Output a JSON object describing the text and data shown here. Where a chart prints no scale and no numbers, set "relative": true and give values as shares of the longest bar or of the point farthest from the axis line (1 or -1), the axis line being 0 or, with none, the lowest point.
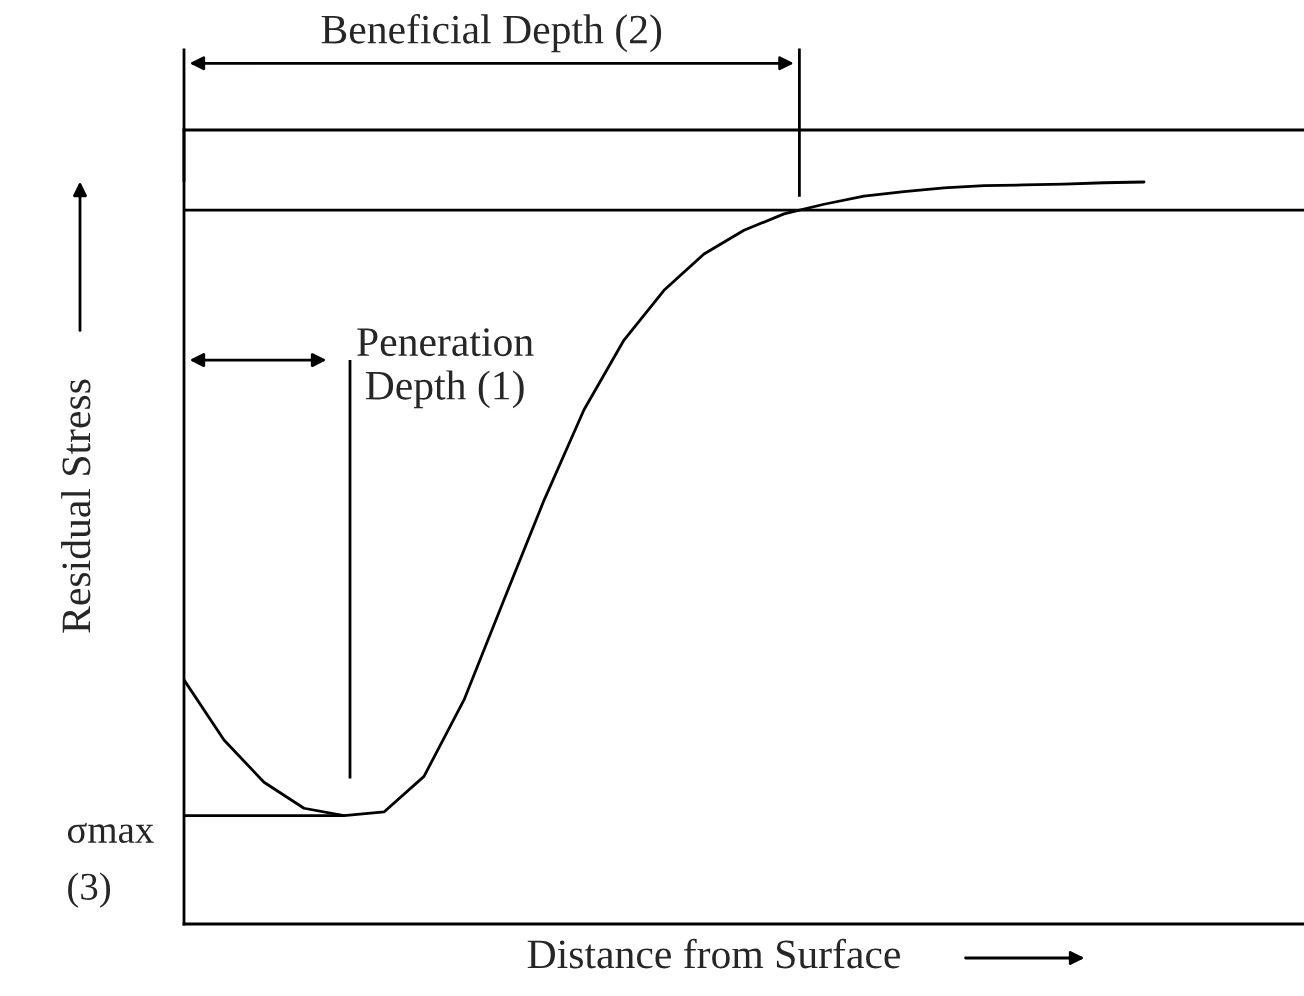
{
  "chart_data": {
    "type": "line",
    "relative": true,
    "xlabel": "Distance from Surface",
    "ylabel": "Residual Stress",
    "categories": [
      null,
      null,
      null,
      null,
      null,
      null,
      null,
      null,
      null,
      null,
      null,
      null,
      null,
      null,
      null,
      null,
      null,
      null,
      null,
      null,
      null,
      null,
      null,
      null,
      null
    ],
    "series": [
      {
        "color": "#000000",
        "values": [
          0.329,
          0.248,
          0.191,
          0.156,
          0.146,
          0.151,
          0.199,
          0.302,
          0.437,
          0.571,
          0.693,
          0.787,
          0.854,
          0.903,
          0.935,
          0.957,
          0.97,
          0.981,
          0.987,
          0.992,
          0.995,
          0.996,
          0.997,
          0.999,
          1.0
        ]
      }
    ],
    "ref_lines": [
      {
        "axis": "y",
        "value": 0.962,
        "color": "#000000"
      },
      {
        "axis": "y",
        "value": 0.146,
        "label": "σmax\n(3)",
        "color": "#000000"
      }
    ],
    "annotations": [
      "Beneficial Depth (2)",
      "Peneration\nDepth (1)"
    ],
    "marker": "none",
    "line_style": "solid",
    "legend": false
  }
}
